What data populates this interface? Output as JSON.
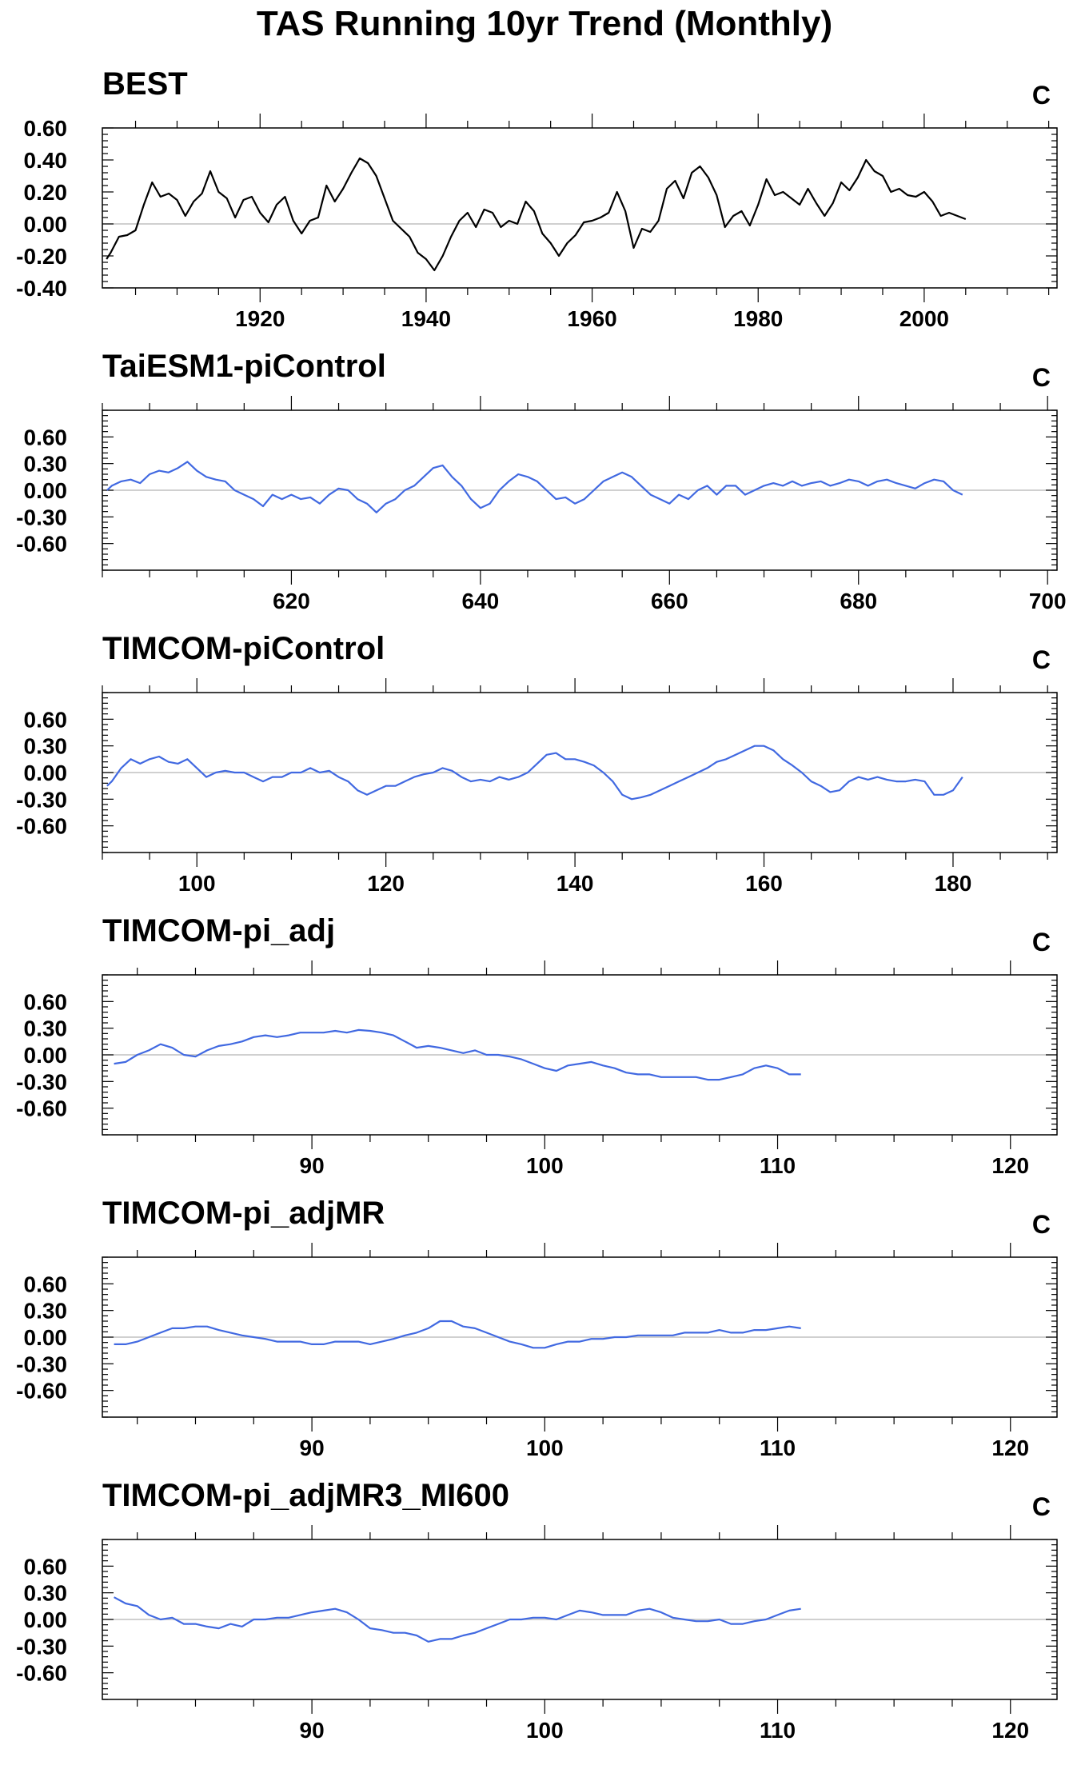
{
  "title": "TAS Running 10yr Trend (Monthly)",
  "colors": {
    "obs": "#000000",
    "model": "#4169e1",
    "zero_line": "#c0c0c0",
    "frame": "#000000"
  },
  "chart_data": [
    {
      "type": "line",
      "title": "BEST",
      "unit": "C",
      "color": "#000000",
      "xlim": [
        1901,
        2016
      ],
      "ylim": [
        -0.4,
        0.6
      ],
      "x_ticks": [
        1920,
        1940,
        1960,
        1980,
        2000
      ],
      "y_ticks": [
        -0.4,
        -0.2,
        0.0,
        0.2,
        0.4,
        0.6
      ],
      "y_tick_labels": [
        "-0.40",
        "-0.20",
        "0.00",
        "0.20",
        "0.40",
        "0.60"
      ],
      "x": [
        1901.5,
        1902,
        1903,
        1904,
        1905,
        1906,
        1907,
        1908,
        1909,
        1910,
        1911,
        1912,
        1913,
        1914,
        1915,
        1916,
        1917,
        1918,
        1919,
        1920,
        1921,
        1922,
        1923,
        1924,
        1925,
        1926,
        1927,
        1928,
        1929,
        1930,
        1931,
        1932,
        1933,
        1934,
        1935,
        1936,
        1937,
        1938,
        1939,
        1940,
        1941,
        1942,
        1943,
        1944,
        1945,
        1946,
        1947,
        1948,
        1949,
        1950,
        1951,
        1952,
        1953,
        1954,
        1955,
        1956,
        1957,
        1958,
        1959,
        1960,
        1961,
        1962,
        1963,
        1964,
        1965,
        1966,
        1967,
        1968,
        1969,
        1970,
        1971,
        1972,
        1973,
        1974,
        1975,
        1976,
        1977,
        1978,
        1979,
        1980,
        1981,
        1982,
        1983,
        1984,
        1985,
        1986,
        1987,
        1988,
        1989,
        1990,
        1991,
        1992,
        1993,
        1994,
        1995,
        1996,
        1997,
        1998,
        1999,
        2000,
        2001,
        2002,
        2003,
        2004,
        2005
      ],
      "y": [
        -0.22,
        -0.18,
        -0.08,
        -0.07,
        -0.04,
        0.12,
        0.26,
        0.17,
        0.19,
        0.15,
        0.05,
        0.14,
        0.19,
        0.33,
        0.2,
        0.16,
        0.04,
        0.15,
        0.17,
        0.07,
        0.01,
        0.12,
        0.17,
        0.02,
        -0.06,
        0.02,
        0.04,
        0.24,
        0.14,
        0.22,
        0.32,
        0.41,
        0.38,
        0.3,
        0.16,
        0.02,
        -0.03,
        -0.08,
        -0.18,
        -0.22,
        -0.29,
        -0.2,
        -0.08,
        0.02,
        0.07,
        -0.02,
        0.09,
        0.07,
        -0.02,
        0.02,
        0.0,
        0.14,
        0.08,
        -0.06,
        -0.12,
        -0.2,
        -0.12,
        -0.07,
        0.01,
        0.02,
        0.04,
        0.07,
        0.2,
        0.08,
        -0.15,
        -0.03,
        -0.05,
        0.02,
        0.22,
        0.27,
        0.16,
        0.32,
        0.36,
        0.29,
        0.18,
        -0.02,
        0.05,
        0.08,
        -0.01,
        0.12,
        0.28,
        0.18,
        0.2,
        0.16,
        0.12,
        0.22,
        0.13,
        0.05,
        0.13,
        0.26,
        0.21,
        0.29,
        0.4,
        0.33,
        0.3,
        0.2,
        0.22,
        0.18,
        0.17,
        0.2,
        0.14,
        0.05,
        0.07,
        0.05,
        0.03
      ]
    },
    {
      "type": "line",
      "title": "TaiESM1-piControl",
      "unit": "C",
      "color": "#4169e1",
      "xlim": [
        600,
        701
      ],
      "ylim": [
        -0.9,
        0.9
      ],
      "x_ticks": [
        620,
        640,
        660,
        680,
        700
      ],
      "y_ticks": [
        -0.6,
        -0.3,
        0.0,
        0.3,
        0.6
      ],
      "y_tick_labels": [
        "-0.60",
        "-0.30",
        "0.00",
        "0.30",
        "0.60"
      ],
      "x": [
        600.5,
        601,
        602,
        603,
        604,
        605,
        606,
        607,
        608,
        609,
        610,
        611,
        612,
        613,
        614,
        615,
        616,
        617,
        618,
        619,
        620,
        621,
        622,
        623,
        624,
        625,
        626,
        627,
        628,
        629,
        630,
        631,
        632,
        633,
        634,
        635,
        636,
        637,
        638,
        639,
        640,
        641,
        642,
        643,
        644,
        645,
        646,
        647,
        648,
        649,
        650,
        651,
        652,
        653,
        654,
        655,
        656,
        657,
        658,
        659,
        660,
        661,
        662,
        663,
        664,
        665,
        666,
        667,
        668,
        669,
        670,
        671,
        672,
        673,
        674,
        675,
        676,
        677,
        678,
        679,
        680,
        681,
        682,
        683,
        684,
        685,
        686,
        687,
        688,
        689,
        690,
        691
      ],
      "y": [
        0.0,
        0.05,
        0.1,
        0.12,
        0.08,
        0.18,
        0.22,
        0.2,
        0.25,
        0.32,
        0.22,
        0.15,
        0.12,
        0.1,
        0.0,
        -0.05,
        -0.1,
        -0.18,
        -0.05,
        -0.1,
        -0.05,
        -0.1,
        -0.08,
        -0.15,
        -0.05,
        0.02,
        0.0,
        -0.1,
        -0.15,
        -0.25,
        -0.15,
        -0.1,
        0.0,
        0.05,
        0.15,
        0.25,
        0.28,
        0.15,
        0.05,
        -0.1,
        -0.2,
        -0.15,
        0.0,
        0.1,
        0.18,
        0.15,
        0.1,
        0.0,
        -0.1,
        -0.08,
        -0.15,
        -0.1,
        0.0,
        0.1,
        0.15,
        0.2,
        0.15,
        0.05,
        -0.05,
        -0.1,
        -0.15,
        -0.05,
        -0.1,
        0.0,
        0.05,
        -0.05,
        0.05,
        0.05,
        -0.05,
        0.0,
        0.05,
        0.08,
        0.05,
        0.1,
        0.05,
        0.08,
        0.1,
        0.05,
        0.08,
        0.12,
        0.1,
        0.05,
        0.1,
        0.12,
        0.08,
        0.05,
        0.02,
        0.08,
        0.12,
        0.1,
        0.0,
        -0.05
      ]
    },
    {
      "type": "line",
      "title": "TIMCOM-piControl",
      "unit": "C",
      "color": "#4169e1",
      "xlim": [
        90,
        191
      ],
      "ylim": [
        -0.9,
        0.9
      ],
      "x_ticks": [
        100,
        120,
        140,
        160,
        180
      ],
      "y_ticks": [
        -0.6,
        -0.3,
        0.0,
        0.3,
        0.6
      ],
      "y_tick_labels": [
        "-0.60",
        "-0.30",
        "0.00",
        "0.30",
        "0.60"
      ],
      "x": [
        90.5,
        91,
        92,
        93,
        94,
        95,
        96,
        97,
        98,
        99,
        100,
        101,
        102,
        103,
        104,
        105,
        106,
        107,
        108,
        109,
        110,
        111,
        112,
        113,
        114,
        115,
        116,
        117,
        118,
        119,
        120,
        121,
        122,
        123,
        124,
        125,
        126,
        127,
        128,
        129,
        130,
        131,
        132,
        133,
        134,
        135,
        136,
        137,
        138,
        139,
        140,
        141,
        142,
        143,
        144,
        145,
        146,
        147,
        148,
        149,
        150,
        151,
        152,
        153,
        154,
        155,
        156,
        157,
        158,
        159,
        160,
        161,
        162,
        163,
        164,
        165,
        166,
        167,
        168,
        169,
        170,
        171,
        172,
        173,
        174,
        175,
        176,
        177,
        178,
        179,
        180,
        181
      ],
      "y": [
        -0.15,
        -0.1,
        0.05,
        0.15,
        0.1,
        0.15,
        0.18,
        0.12,
        0.1,
        0.15,
        0.05,
        -0.05,
        0.0,
        0.02,
        0.0,
        0.0,
        -0.05,
        -0.1,
        -0.05,
        -0.05,
        0.0,
        0.0,
        0.05,
        0.0,
        0.02,
        -0.05,
        -0.1,
        -0.2,
        -0.25,
        -0.2,
        -0.15,
        -0.15,
        -0.1,
        -0.05,
        -0.02,
        0.0,
        0.05,
        0.02,
        -0.05,
        -0.1,
        -0.08,
        -0.1,
        -0.05,
        -0.08,
        -0.05,
        0.0,
        0.1,
        0.2,
        0.22,
        0.15,
        0.15,
        0.12,
        0.08,
        0.0,
        -0.1,
        -0.25,
        -0.3,
        -0.28,
        -0.25,
        -0.2,
        -0.15,
        -0.1,
        -0.05,
        0.0,
        0.05,
        0.12,
        0.15,
        0.2,
        0.25,
        0.3,
        0.3,
        0.25,
        0.15,
        0.08,
        0.0,
        -0.1,
        -0.15,
        -0.22,
        -0.2,
        -0.1,
        -0.05,
        -0.08,
        -0.05,
        -0.08,
        -0.1,
        -0.1,
        -0.08,
        -0.1,
        -0.25,
        -0.25,
        -0.2,
        -0.05
      ]
    },
    {
      "type": "line",
      "title": "TIMCOM-pi_adj",
      "unit": "C",
      "color": "#4169e1",
      "xlim": [
        81,
        122
      ],
      "ylim": [
        -0.9,
        0.9
      ],
      "x_ticks": [
        90,
        100,
        110,
        120
      ],
      "y_ticks": [
        -0.6,
        -0.3,
        0.0,
        0.3,
        0.6
      ],
      "y_tick_labels": [
        "-0.60",
        "-0.30",
        "0.00",
        "0.30",
        "0.60"
      ],
      "x": [
        81.5,
        82,
        82.5,
        83,
        83.5,
        84,
        84.5,
        85,
        85.5,
        86,
        86.5,
        87,
        87.5,
        88,
        88.5,
        89,
        89.5,
        90,
        90.5,
        91,
        91.5,
        92,
        92.5,
        93,
        93.5,
        94,
        94.5,
        95,
        95.5,
        96,
        96.5,
        97,
        97.5,
        98,
        98.5,
        99,
        99.5,
        100,
        100.5,
        101,
        101.5,
        102,
        102.5,
        103,
        103.5,
        104,
        104.5,
        105,
        105.5,
        106,
        106.5,
        107,
        107.5,
        108,
        108.5,
        109,
        109.5,
        110,
        110.5,
        111
      ],
      "y": [
        -0.1,
        -0.08,
        0.0,
        0.05,
        0.12,
        0.08,
        0.0,
        -0.02,
        0.05,
        0.1,
        0.12,
        0.15,
        0.2,
        0.22,
        0.2,
        0.22,
        0.25,
        0.25,
        0.25,
        0.27,
        0.25,
        0.28,
        0.27,
        0.25,
        0.22,
        0.15,
        0.08,
        0.1,
        0.08,
        0.05,
        0.02,
        0.05,
        0.0,
        0.0,
        -0.02,
        -0.05,
        -0.1,
        -0.15,
        -0.18,
        -0.12,
        -0.1,
        -0.08,
        -0.12,
        -0.15,
        -0.2,
        -0.22,
        -0.22,
        -0.25,
        -0.25,
        -0.25,
        -0.25,
        -0.28,
        -0.28,
        -0.25,
        -0.22,
        -0.15,
        -0.12,
        -0.15,
        -0.22,
        -0.22
      ]
    },
    {
      "type": "line",
      "title": "TIMCOM-pi_adjMR",
      "unit": "C",
      "color": "#4169e1",
      "xlim": [
        81,
        122
      ],
      "ylim": [
        -0.9,
        0.9
      ],
      "x_ticks": [
        90,
        100,
        110,
        120
      ],
      "y_ticks": [
        -0.6,
        -0.3,
        0.0,
        0.3,
        0.6
      ],
      "y_tick_labels": [
        "-0.60",
        "-0.30",
        "0.00",
        "0.30",
        "0.60"
      ],
      "x": [
        81.5,
        82,
        82.5,
        83,
        83.5,
        84,
        84.5,
        85,
        85.5,
        86,
        86.5,
        87,
        87.5,
        88,
        88.5,
        89,
        89.5,
        90,
        90.5,
        91,
        91.5,
        92,
        92.5,
        93,
        93.5,
        94,
        94.5,
        95,
        95.5,
        96,
        96.5,
        97,
        97.5,
        98,
        98.5,
        99,
        99.5,
        100,
        100.5,
        101,
        101.5,
        102,
        102.5,
        103,
        103.5,
        104,
        104.5,
        105,
        105.5,
        106,
        106.5,
        107,
        107.5,
        108,
        108.5,
        109,
        109.5,
        110,
        110.5,
        111
      ],
      "y": [
        -0.08,
        -0.08,
        -0.05,
        0.0,
        0.05,
        0.1,
        0.1,
        0.12,
        0.12,
        0.08,
        0.05,
        0.02,
        0.0,
        -0.02,
        -0.05,
        -0.05,
        -0.05,
        -0.08,
        -0.08,
        -0.05,
        -0.05,
        -0.05,
        -0.08,
        -0.05,
        -0.02,
        0.02,
        0.05,
        0.1,
        0.18,
        0.18,
        0.12,
        0.1,
        0.05,
        0.0,
        -0.05,
        -0.08,
        -0.12,
        -0.12,
        -0.08,
        -0.05,
        -0.05,
        -0.02,
        -0.02,
        0.0,
        0.0,
        0.02,
        0.02,
        0.02,
        0.02,
        0.05,
        0.05,
        0.05,
        0.08,
        0.05,
        0.05,
        0.08,
        0.08,
        0.1,
        0.12,
        0.1
      ]
    },
    {
      "type": "line",
      "title": "TIMCOM-pi_adjMR3_MI600",
      "unit": "C",
      "color": "#4169e1",
      "xlim": [
        81,
        122
      ],
      "ylim": [
        -0.9,
        0.9
      ],
      "x_ticks": [
        90,
        100,
        110,
        120
      ],
      "y_ticks": [
        -0.6,
        -0.3,
        0.0,
        0.3,
        0.6
      ],
      "y_tick_labels": [
        "-0.60",
        "-0.30",
        "0.00",
        "0.30",
        "0.60"
      ],
      "x": [
        81.5,
        82,
        82.5,
        83,
        83.5,
        84,
        84.5,
        85,
        85.5,
        86,
        86.5,
        87,
        87.5,
        88,
        88.5,
        89,
        89.5,
        90,
        90.5,
        91,
        91.5,
        92,
        92.5,
        93,
        93.5,
        94,
        94.5,
        95,
        95.5,
        96,
        96.5,
        97,
        97.5,
        98,
        98.5,
        99,
        99.5,
        100,
        100.5,
        101,
        101.5,
        102,
        102.5,
        103,
        103.5,
        104,
        104.5,
        105,
        105.5,
        106,
        106.5,
        107,
        107.5,
        108,
        108.5,
        109,
        109.5,
        110,
        110.5,
        111
      ],
      "y": [
        0.25,
        0.18,
        0.15,
        0.05,
        0.0,
        0.02,
        -0.05,
        -0.05,
        -0.08,
        -0.1,
        -0.05,
        -0.08,
        0.0,
        0.0,
        0.02,
        0.02,
        0.05,
        0.08,
        0.1,
        0.12,
        0.08,
        0.0,
        -0.1,
        -0.12,
        -0.15,
        -0.15,
        -0.18,
        -0.25,
        -0.22,
        -0.22,
        -0.18,
        -0.15,
        -0.1,
        -0.05,
        0.0,
        0.0,
        0.02,
        0.02,
        0.0,
        0.05,
        0.1,
        0.08,
        0.05,
        0.05,
        0.05,
        0.1,
        0.12,
        0.08,
        0.02,
        0.0,
        -0.02,
        -0.02,
        0.0,
        -0.05,
        -0.05,
        -0.02,
        0.0,
        0.05,
        0.1,
        0.12
      ]
    }
  ]
}
